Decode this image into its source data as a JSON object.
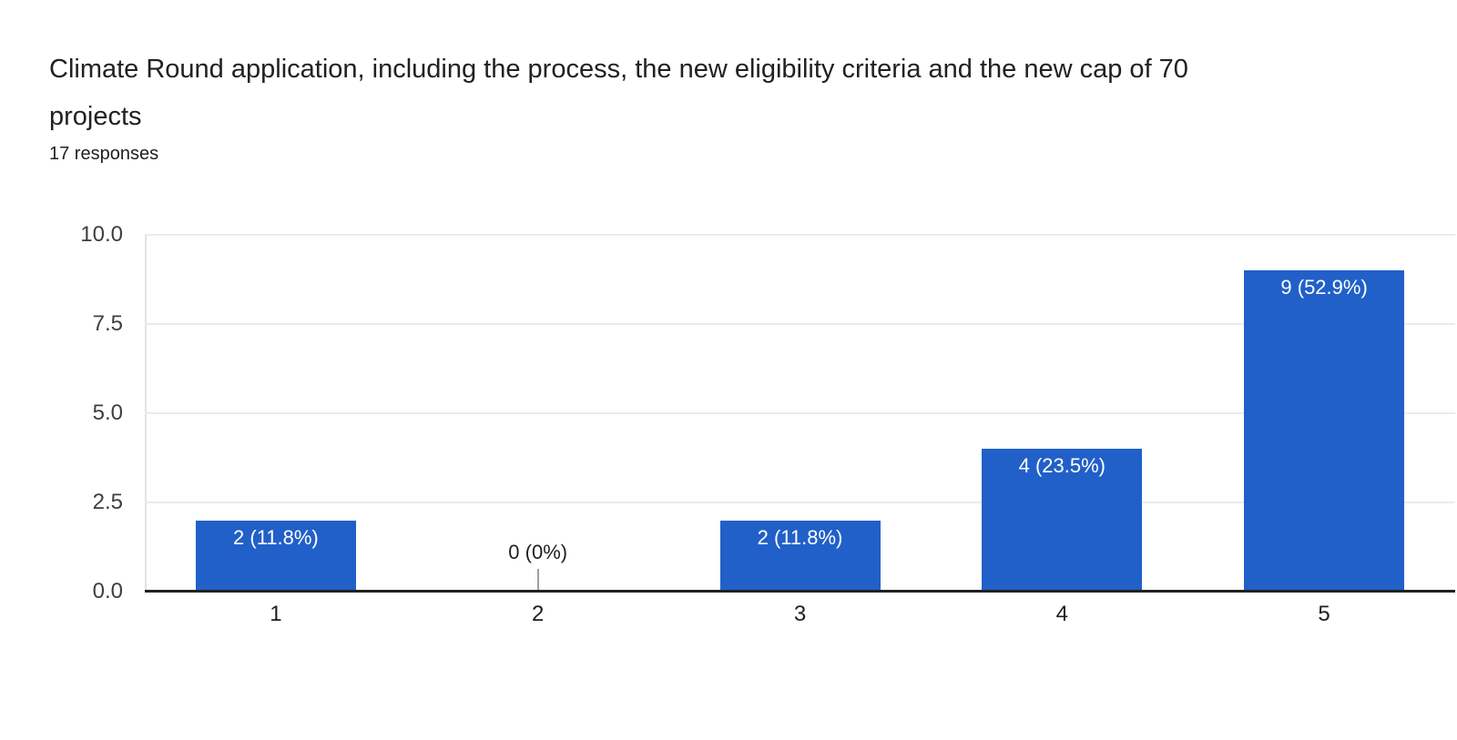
{
  "header": {
    "title": "Climate Round application, including the process, the new eligibility criteria and the new cap of 70 projects",
    "title_line1": "Climate Round application, including the process, the new eligibility criteria and the new cap of 70",
    "title_line2": "projects",
    "responses_label": "17 responses"
  },
  "chart_data": {
    "type": "bar",
    "title": "Climate Round application, including the process, the new eligibility criteria and the new cap of 70 projects",
    "subtitle": "17 responses",
    "categories": [
      "1",
      "2",
      "3",
      "4",
      "5"
    ],
    "values": [
      2,
      0,
      2,
      4,
      9
    ],
    "percentages": [
      11.8,
      0,
      11.8,
      23.5,
      52.9
    ],
    "bar_labels": [
      "2 (11.8%)",
      "0 (0%)",
      "2 (11.8%)",
      "4 (23.5%)",
      "9 (52.9%)"
    ],
    "total_responses": 17,
    "xlabel": "",
    "ylabel": "",
    "ylim": [
      0,
      10
    ],
    "yticks": [
      "0.0",
      "2.5",
      "5.0",
      "7.5",
      "10.0"
    ],
    "grid": true,
    "legend": false,
    "colors": {
      "bar": "#2160c8",
      "bar_label_text": "#ffffff",
      "zero_label_text": "#202124",
      "axis_line": "#212121",
      "gridline": "#ebebeb",
      "tick_text": "#3c4043",
      "title_text": "#202124",
      "background": "#ffffff"
    }
  }
}
